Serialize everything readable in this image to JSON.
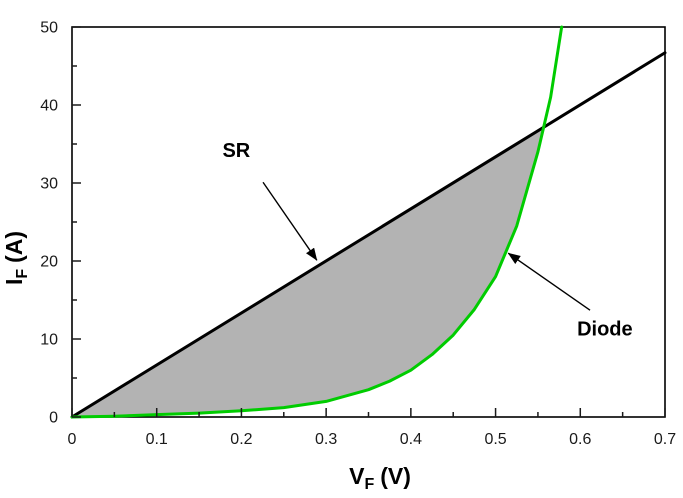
{
  "chart_data": {
    "type": "line",
    "title": "",
    "xlabel": {
      "main": "V",
      "sub": "F",
      "unit": "(V)"
    },
    "ylabel": {
      "main": "I",
      "sub": "F",
      "unit": "(A)"
    },
    "xlim": [
      0,
      0.7
    ],
    "ylim": [
      0,
      50
    ],
    "grid": false,
    "legend": "none",
    "x_major_ticks": [
      0,
      0.1,
      0.2,
      0.3,
      0.4,
      0.5,
      0.6,
      0.7
    ],
    "x_tick_labels": [
      "0",
      "0.1",
      "0.2",
      "0.3",
      "0.4",
      "0.5",
      "0.6",
      "0.7"
    ],
    "x_minor_ticks": [
      0.05,
      0.15,
      0.25,
      0.35,
      0.45,
      0.55,
      0.65
    ],
    "y_major_ticks": [
      0,
      10,
      20,
      30,
      40,
      50
    ],
    "y_tick_labels": [
      "0",
      "10",
      "20",
      "30",
      "40",
      "50"
    ],
    "y_minor_ticks": [
      5,
      15,
      25,
      35,
      45
    ],
    "series": [
      {
        "name": "SR",
        "color": "#000000",
        "width": 3,
        "x": [
          0,
          0.7
        ],
        "y": [
          0,
          46.7
        ]
      },
      {
        "name": "Diode",
        "color": "#00cc00",
        "width": 3,
        "x": [
          0,
          0.05,
          0.1,
          0.15,
          0.2,
          0.25,
          0.3,
          0.35,
          0.375,
          0.4,
          0.425,
          0.45,
          0.475,
          0.5,
          0.525,
          0.55,
          0.565,
          0.578
        ],
        "y": [
          0,
          0.1,
          0.3,
          0.5,
          0.8,
          1.2,
          2.0,
          3.5,
          4.6,
          6.0,
          8.0,
          10.5,
          13.8,
          18.0,
          24.5,
          34.0,
          41.0,
          50
        ]
      }
    ],
    "shaded_area": {
      "color": "#b3b3b3",
      "between": [
        "SR",
        "Diode"
      ],
      "crossing": [
        0.5567,
        37.1
      ]
    },
    "annotations": [
      {
        "label": "SR",
        "text": [
          0.194,
          34.1
        ],
        "arrow_from": [
          0.2255,
          30.1
        ],
        "arrow_to": [
          0.289,
          20.1
        ]
      },
      {
        "label": "Diode",
        "text": [
          0.629,
          11.2
        ],
        "arrow_from": [
          0.6115,
          13.7
        ],
        "arrow_to": [
          0.515,
          21.0
        ]
      }
    ]
  }
}
